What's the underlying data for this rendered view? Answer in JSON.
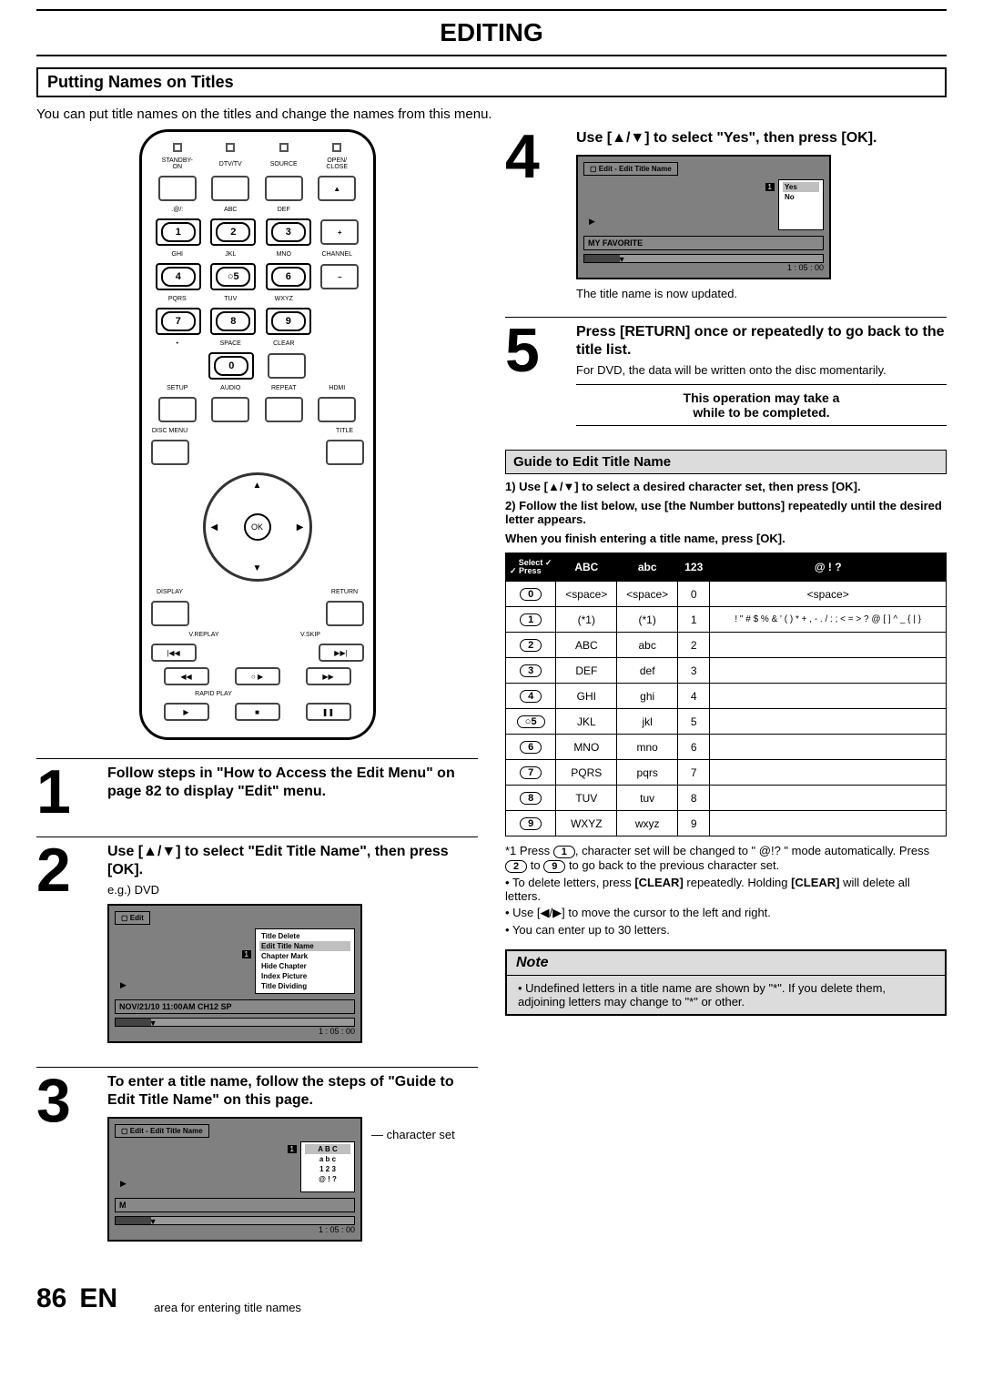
{
  "doc": {
    "chapter_title": "EDITING",
    "section_title": "Putting Names on Titles",
    "intro": "You can put title names on the titles and change the names from this menu.",
    "page_number": "86",
    "language": "EN",
    "caption_area": "area for entering title names",
    "caption_charset": "character set"
  },
  "remote": {
    "row1": [
      "STANDBY-ON",
      "DTV/TV",
      "SOURCE",
      "OPEN/\nCLOSE"
    ],
    "row_labels_1": [
      ".@/:",
      "ABC",
      "DEF",
      ""
    ],
    "row_labels_2": [
      "GHI",
      "JKL",
      "MNO",
      "CHANNEL"
    ],
    "row_labels_3": [
      "PQRS",
      "TUV",
      "WXYZ",
      ""
    ],
    "row_labels_4": [
      "",
      "SPACE",
      "CLEAR",
      ""
    ],
    "row_labels_5": [
      "SETUP",
      "AUDIO",
      "REPEAT",
      "HDMI"
    ],
    "disc_menu": "DISC MENU",
    "title": "TITLE",
    "display": "DISPLAY",
    "return": "RETURN",
    "vreplay": "V.REPLAY",
    "vskip": "V.SKIP",
    "rapid": "RAPID PLAY",
    "ok": "OK"
  },
  "steps": {
    "s1": {
      "title": "Follow steps in \"How to Access the Edit Menu\" on page 82 to display \"Edit\" menu."
    },
    "s2": {
      "title": "Use [▲/▼] to select \"Edit Title Name\", then press [OK].",
      "sub": "e.g.) DVD",
      "shot_header": "Edit",
      "menu": [
        "Title Delete",
        "Edit Title Name",
        "Chapter Mark",
        "Hide Chapter",
        "Index Picture",
        "Title Dividing"
      ],
      "highlight_index": 1,
      "status": "NOV/21/10 11:00AM CH12 SP",
      "time": "1 : 05 : 00"
    },
    "s3": {
      "title": "To enter a title name, follow the steps of \"Guide to Edit Title Name\" on this page.",
      "shot_header": "Edit - Edit Title Name",
      "charset_rows": [
        "A  B  C",
        "a  b  c",
        "1  2  3",
        "@  !  ?"
      ],
      "status_letter": "M",
      "time": "1 : 05 : 00"
    },
    "s4": {
      "title": "Use [▲/▼] to select \"Yes\", then press [OK].",
      "shot_header": "Edit - Edit Title Name",
      "options": [
        "Yes",
        "No"
      ],
      "status": "MY FAVORITE",
      "time": "1 : 05 : 00",
      "after": "The title name is now updated."
    },
    "s5": {
      "title": "Press [RETURN] once or repeatedly to go back to the title list.",
      "body": "For DVD, the data will be written onto the disc momentarily.",
      "warn1": "This operation may take a",
      "warn2": "while to be completed."
    }
  },
  "guide": {
    "header": "Guide to Edit Title Name",
    "p1": "1) Use [▲/▼] to select a desired character set, then press [OK].",
    "p2": "2) Follow the list below, use [the Number buttons] repeatedly until the desired letter appears.",
    "p3": "When you finish entering a title name, press [OK].",
    "table_head_corner_top": "Select",
    "table_head_corner_bottom": "Press",
    "columns": [
      "ABC",
      "abc",
      "123",
      "@ ! ?"
    ],
    "rows": [
      {
        "key": "0",
        "ABC": "<space>",
        "abc": "<space>",
        "123": "0",
        "sym": "<space>"
      },
      {
        "key": "1",
        "ABC": "(*1)",
        "abc": "(*1)",
        "123": "1",
        "sym": "! \" # $ % & ' ( ) * + , - . / : ; < = > ? @ [ ] ^ _ { | }"
      },
      {
        "key": "2",
        "ABC": "ABC",
        "abc": "abc",
        "123": "2",
        "sym": ""
      },
      {
        "key": "3",
        "ABC": "DEF",
        "abc": "def",
        "123": "3",
        "sym": ""
      },
      {
        "key": "4",
        "ABC": "GHI",
        "abc": "ghi",
        "123": "4",
        "sym": ""
      },
      {
        "key": "5",
        "ABC": "JKL",
        "abc": "jkl",
        "123": "5",
        "sym": ""
      },
      {
        "key": "6",
        "ABC": "MNO",
        "abc": "mno",
        "123": "6",
        "sym": ""
      },
      {
        "key": "7",
        "ABC": "PQRS",
        "abc": "pqrs",
        "123": "7",
        "sym": ""
      },
      {
        "key": "8",
        "ABC": "TUV",
        "abc": "tuv",
        "123": "8",
        "sym": ""
      },
      {
        "key": "9",
        "ABC": "WXYZ",
        "abc": "wxyz",
        "123": "9",
        "sym": ""
      }
    ],
    "footnote_a": "*1 Press ",
    "footnote_b": ", character set will be changed to \" @!? \" mode automatically. Press ",
    "footnote_c": " to ",
    "footnote_d": " to go back to the previous character set.",
    "tip_delete_a": "To delete letters, press ",
    "tip_delete_b": " repeatedly. Holding ",
    "tip_delete_c": " will delete all letters.",
    "clear": "[CLEAR]",
    "tip_cursor": "Use [◀/▶] to move the cursor to the left and right.",
    "tip_limit": "You can enter up to 30 letters."
  },
  "note": {
    "title": "Note",
    "body": "Undefined letters in a title name are shown by \"*\". If you delete them, adjoining letters may change to \"*\" or other."
  }
}
